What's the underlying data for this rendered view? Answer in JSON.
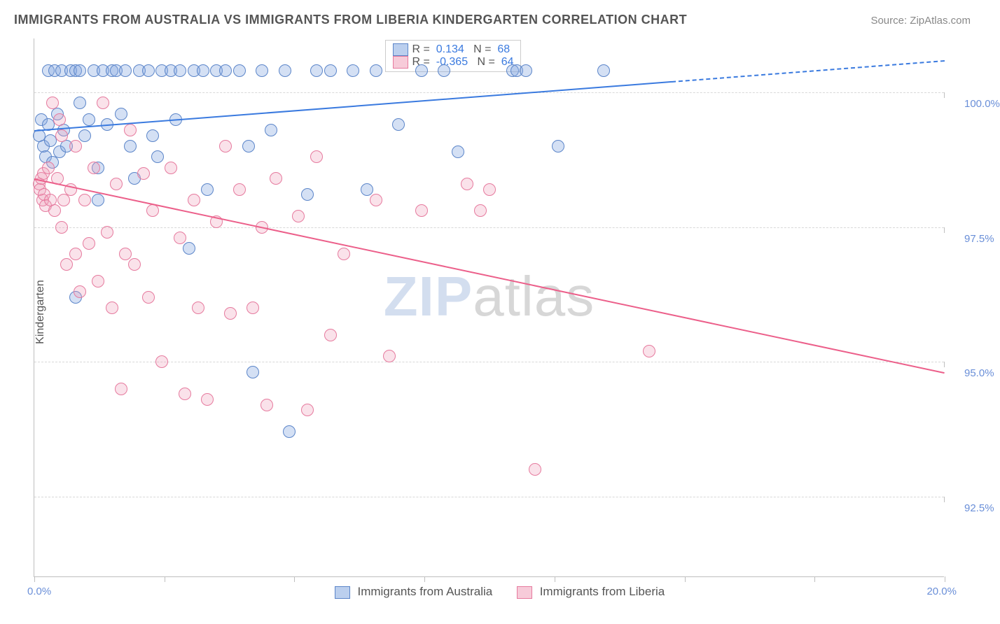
{
  "title": "IMMIGRANTS FROM AUSTRALIA VS IMMIGRANTS FROM LIBERIA KINDERGARTEN CORRELATION CHART",
  "source": "Source: ZipAtlas.com",
  "yaxis_title": "Kindergarten",
  "watermark_zip": "ZIP",
  "watermark_atlas": "atlas",
  "chart": {
    "type": "scatter",
    "background_color": "#ffffff",
    "grid_color": "#d8d8d8",
    "axis_color": "#bfbfbf",
    "label_color": "#6a8fd8",
    "x": {
      "min": 0.0,
      "max": 20.0,
      "label_min": "0.0%",
      "label_max": "20.0%",
      "ticks": [
        0.0,
        2.857,
        5.714,
        8.571,
        11.428,
        14.285,
        17.143,
        20.0
      ]
    },
    "y": {
      "min": 91.0,
      "max": 101.0,
      "gridlines": [
        92.5,
        95.0,
        97.5,
        100.0
      ],
      "labels": [
        "92.5%",
        "95.0%",
        "97.5%",
        "100.0%"
      ]
    },
    "series": [
      {
        "name": "Immigrants from Australia",
        "color_fill": "rgba(131,167,224,0.35)",
        "color_stroke": "#5b85c9",
        "marker_class": "mblue",
        "R": "0.134",
        "N": "68",
        "trend": {
          "color": "#3a7adf",
          "y_at_x0": 99.3,
          "y_at_x20": 100.6,
          "solid_until_x": 14.0
        },
        "points": [
          [
            0.1,
            99.2
          ],
          [
            0.15,
            99.5
          ],
          [
            0.2,
            99.0
          ],
          [
            0.25,
            98.8
          ],
          [
            0.3,
            99.4
          ],
          [
            0.3,
            100.4
          ],
          [
            0.35,
            99.1
          ],
          [
            0.4,
            98.7
          ],
          [
            0.45,
            100.4
          ],
          [
            0.5,
            99.6
          ],
          [
            0.55,
            98.9
          ],
          [
            0.6,
            100.4
          ],
          [
            0.65,
            99.3
          ],
          [
            0.7,
            99.0
          ],
          [
            0.8,
            100.4
          ],
          [
            0.9,
            100.4
          ],
          [
            1.0,
            99.8
          ],
          [
            1.0,
            100.4
          ],
          [
            1.1,
            99.2
          ],
          [
            1.2,
            99.5
          ],
          [
            1.3,
            100.4
          ],
          [
            1.4,
            98.6
          ],
          [
            1.5,
            100.4
          ],
          [
            1.6,
            99.4
          ],
          [
            1.7,
            100.4
          ],
          [
            1.8,
            100.4
          ],
          [
            1.9,
            99.6
          ],
          [
            2.0,
            100.4
          ],
          [
            2.1,
            99.0
          ],
          [
            2.2,
            98.4
          ],
          [
            2.3,
            100.4
          ],
          [
            2.5,
            100.4
          ],
          [
            2.6,
            99.2
          ],
          [
            2.7,
            98.8
          ],
          [
            2.8,
            100.4
          ],
          [
            3.0,
            100.4
          ],
          [
            3.1,
            99.5
          ],
          [
            3.2,
            100.4
          ],
          [
            3.4,
            97.1
          ],
          [
            3.5,
            100.4
          ],
          [
            3.7,
            100.4
          ],
          [
            3.8,
            98.2
          ],
          [
            4.0,
            100.4
          ],
          [
            4.2,
            100.4
          ],
          [
            4.5,
            100.4
          ],
          [
            4.7,
            99.0
          ],
          [
            4.8,
            94.8
          ],
          [
            5.0,
            100.4
          ],
          [
            5.2,
            99.3
          ],
          [
            5.5,
            100.4
          ],
          [
            5.6,
            93.7
          ],
          [
            6.0,
            98.1
          ],
          [
            6.2,
            100.4
          ],
          [
            6.5,
            100.4
          ],
          [
            7.0,
            100.4
          ],
          [
            7.3,
            98.2
          ],
          [
            7.5,
            100.4
          ],
          [
            8.0,
            99.4
          ],
          [
            8.5,
            100.4
          ],
          [
            9.0,
            100.4
          ],
          [
            9.3,
            98.9
          ],
          [
            10.5,
            100.4
          ],
          [
            10.6,
            100.4
          ],
          [
            10.8,
            100.4
          ],
          [
            11.5,
            99.0
          ],
          [
            12.5,
            100.4
          ],
          [
            0.9,
            96.2
          ],
          [
            1.4,
            98.0
          ]
        ]
      },
      {
        "name": "Immigrants from Liberia",
        "color_fill": "rgba(240,160,185,0.30)",
        "color_stroke": "#e67a9e",
        "marker_class": "mpink",
        "R": "-0.365",
        "N": "64",
        "trend": {
          "color": "#ec5f8a",
          "y_at_x0": 98.4,
          "y_at_x20": 94.8
        },
        "points": [
          [
            0.1,
            98.3
          ],
          [
            0.12,
            98.2
          ],
          [
            0.15,
            98.4
          ],
          [
            0.18,
            98.0
          ],
          [
            0.2,
            98.5
          ],
          [
            0.22,
            98.1
          ],
          [
            0.25,
            97.9
          ],
          [
            0.3,
            98.6
          ],
          [
            0.35,
            98.0
          ],
          [
            0.4,
            99.8
          ],
          [
            0.45,
            97.8
          ],
          [
            0.5,
            98.4
          ],
          [
            0.55,
            99.5
          ],
          [
            0.6,
            97.5
          ],
          [
            0.65,
            98.0
          ],
          [
            0.7,
            96.8
          ],
          [
            0.8,
            98.2
          ],
          [
            0.9,
            97.0
          ],
          [
            1.0,
            96.3
          ],
          [
            1.1,
            98.0
          ],
          [
            1.2,
            97.2
          ],
          [
            1.3,
            98.6
          ],
          [
            1.4,
            96.5
          ],
          [
            1.5,
            99.8
          ],
          [
            1.6,
            97.4
          ],
          [
            1.7,
            96.0
          ],
          [
            1.8,
            98.3
          ],
          [
            1.9,
            94.5
          ],
          [
            2.0,
            97.0
          ],
          [
            2.1,
            99.3
          ],
          [
            2.2,
            96.8
          ],
          [
            2.4,
            98.5
          ],
          [
            2.5,
            96.2
          ],
          [
            2.6,
            97.8
          ],
          [
            2.8,
            95.0
          ],
          [
            3.0,
            98.6
          ],
          [
            3.2,
            97.3
          ],
          [
            3.3,
            94.4
          ],
          [
            3.5,
            98.0
          ],
          [
            3.6,
            96.0
          ],
          [
            3.8,
            94.3
          ],
          [
            4.0,
            97.6
          ],
          [
            4.2,
            99.0
          ],
          [
            4.3,
            95.9
          ],
          [
            4.5,
            98.2
          ],
          [
            4.8,
            96.0
          ],
          [
            5.0,
            97.5
          ],
          [
            5.1,
            94.2
          ],
          [
            5.3,
            98.4
          ],
          [
            5.8,
            97.7
          ],
          [
            6.0,
            94.1
          ],
          [
            6.2,
            98.8
          ],
          [
            6.5,
            95.5
          ],
          [
            6.8,
            97.0
          ],
          [
            7.5,
            98.0
          ],
          [
            7.8,
            95.1
          ],
          [
            8.5,
            97.8
          ],
          [
            9.5,
            98.3
          ],
          [
            9.8,
            97.8
          ],
          [
            10.0,
            98.2
          ],
          [
            11.0,
            93.0
          ],
          [
            13.5,
            95.2
          ],
          [
            0.6,
            99.2
          ],
          [
            0.9,
            99.0
          ]
        ]
      }
    ]
  },
  "legend_bottom": {
    "series1": "Immigrants from Australia",
    "series2": "Immigrants from Liberia"
  },
  "legend_top_labels": {
    "R": "R =",
    "N": "N ="
  }
}
